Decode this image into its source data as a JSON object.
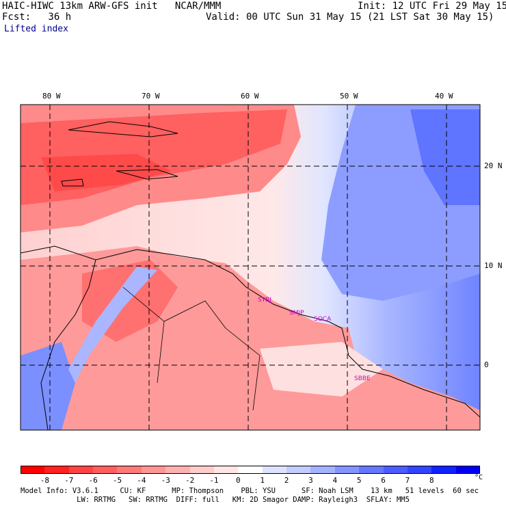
{
  "header": {
    "title_left": "HAIC-HIWC 13km ARW-GFS init   NCAR/MMM",
    "fcst": "Fcst:   36 h",
    "init": "Init: 12 UTC Fri 29 May 15",
    "valid": "Valid: 00 UTC Sun 31 May 15 (21 LST Sat 30 May 15)",
    "field": "Lifted index"
  },
  "map": {
    "lon_labels": [
      "80 W",
      "70 W",
      "60 W",
      "50 W",
      "40 W"
    ],
    "lat_labels": [
      "20 N",
      "10 N",
      "0"
    ],
    "cities": [
      "SYBJ",
      "SMJP",
      "SOCA",
      "SBBE"
    ]
  },
  "colorbar": {
    "ticks": [
      "-8",
      "-7",
      "-6",
      "-5",
      "-4",
      "-3",
      "-2",
      "-1",
      "0",
      "1",
      "2",
      "3",
      "4",
      "5",
      "6",
      "7",
      "8"
    ],
    "unit": "°C",
    "colors": [
      "#ff0000",
      "#ff2222",
      "#ff4444",
      "#ff5f5f",
      "#ff7a7a",
      "#ff9595",
      "#ffb0b0",
      "#ffcccc",
      "#ffe6e6",
      "#ffffff",
      "#dde3ff",
      "#c2ccff",
      "#a3b2ff",
      "#8494ff",
      "#6677ff",
      "#4d5cff",
      "#3344ff",
      "#1122ff",
      "#0000ee"
    ]
  },
  "footer": {
    "line1": "Model Info: V3.6.1     CU: KF      MP: Thompson    PBL: YSU      SF: Noah LSM    13 km   51 levels  60 sec",
    "line2": "             LW: RRTMG   SW: RRTMG  DIFF: full   KM: 2D Smagor DAMP: Rayleigh3  SFLAY: MM5"
  }
}
